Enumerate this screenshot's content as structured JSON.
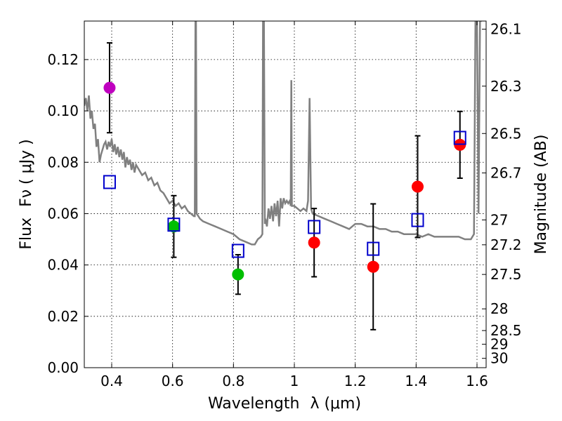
{
  "chart_data": {
    "type": "scatter",
    "xlabel": "Wavelength",
    "xlabel_math": "λ (μm)",
    "ylabel": "Flux",
    "ylabel_math": "Fν ( μJy )",
    "ylabel_right": "Magnitude (AB)",
    "xlim": [
      0.31,
      1.63
    ],
    "ylim": [
      0.0,
      0.135
    ],
    "grid": true,
    "x_ticks": [
      0.4,
      0.6,
      0.8,
      1.0,
      1.2,
      1.4,
      1.6
    ],
    "x_tick_labels": [
      "0.4",
      "0.6",
      "0.8",
      "1",
      "1.2",
      "1.4",
      "1.6"
    ],
    "y_ticks": [
      0.0,
      0.02,
      0.04,
      0.06,
      0.08,
      0.1,
      0.12
    ],
    "y_tick_labels": [
      "0.00",
      "0.02",
      "0.04",
      "0.06",
      "0.08",
      "0.10",
      "0.12"
    ],
    "right_ticks": [
      {
        "label": "26.1",
        "mag": 26.1
      },
      {
        "label": "26.3",
        "mag": 26.3
      },
      {
        "label": "26.5",
        "mag": 26.5
      },
      {
        "label": "26.7",
        "mag": 26.7
      },
      {
        "label": "27",
        "mag": 27.0
      },
      {
        "label": "27.2",
        "mag": 27.2
      },
      {
        "label": "27.5",
        "mag": 27.5
      },
      {
        "label": "28",
        "mag": 28.0
      },
      {
        "label": "28.5",
        "mag": 28.5
      },
      {
        "label": "29",
        "mag": 29.0
      },
      {
        "label": "30",
        "mag": 30.0
      }
    ],
    "observed": [
      {
        "x": 0.393,
        "y": 0.109,
        "err": 0.0175,
        "color": "#bf00bf"
      },
      {
        "x": 0.604,
        "y": 0.055,
        "err": 0.012,
        "color": "#00bf00"
      },
      {
        "x": 0.815,
        "y": 0.0363,
        "err": 0.0077,
        "color": "#00bf00"
      },
      {
        "x": 1.065,
        "y": 0.0487,
        "err": 0.0133,
        "color": "#ff0000"
      },
      {
        "x": 1.259,
        "y": 0.0393,
        "err": 0.0245,
        "color": "#ff0000"
      },
      {
        "x": 1.405,
        "y": 0.0705,
        "err": 0.0198,
        "color": "#ff0000"
      },
      {
        "x": 1.544,
        "y": 0.0868,
        "err": 0.013,
        "color": "#ff0000"
      }
    ],
    "model_bandpass": [
      {
        "x": 0.393,
        "y": 0.0723
      },
      {
        "x": 0.604,
        "y": 0.0557
      },
      {
        "x": 0.815,
        "y": 0.0455
      },
      {
        "x": 1.065,
        "y": 0.0548
      },
      {
        "x": 1.259,
        "y": 0.0463
      },
      {
        "x": 1.405,
        "y": 0.0575
      },
      {
        "x": 1.544,
        "y": 0.0895
      }
    ],
    "model_spectrum": [
      [
        0.31,
        0.102
      ],
      [
        0.315,
        0.105
      ],
      [
        0.32,
        0.1
      ],
      [
        0.325,
        0.106
      ],
      [
        0.33,
        0.097
      ],
      [
        0.335,
        0.1
      ],
      [
        0.34,
        0.093
      ],
      [
        0.345,
        0.095
      ],
      [
        0.35,
        0.086
      ],
      [
        0.355,
        0.089
      ],
      [
        0.36,
        0.08
      ],
      [
        0.365,
        0.083
      ],
      [
        0.37,
        0.085
      ],
      [
        0.375,
        0.087
      ],
      [
        0.38,
        0.088
      ],
      [
        0.385,
        0.085
      ],
      [
        0.39,
        0.088
      ],
      [
        0.395,
        0.086
      ],
      [
        0.4,
        0.089
      ],
      [
        0.405,
        0.084
      ],
      [
        0.41,
        0.087
      ],
      [
        0.415,
        0.083
      ],
      [
        0.42,
        0.086
      ],
      [
        0.425,
        0.082
      ],
      [
        0.43,
        0.085
      ],
      [
        0.435,
        0.081
      ],
      [
        0.44,
        0.084
      ],
      [
        0.445,
        0.078
      ],
      [
        0.45,
        0.082
      ],
      [
        0.455,
        0.079
      ],
      [
        0.46,
        0.081
      ],
      [
        0.465,
        0.077
      ],
      [
        0.47,
        0.08
      ],
      [
        0.475,
        0.076
      ],
      [
        0.48,
        0.079
      ],
      [
        0.49,
        0.077
      ],
      [
        0.5,
        0.075
      ],
      [
        0.51,
        0.076
      ],
      [
        0.52,
        0.073
      ],
      [
        0.53,
        0.074
      ],
      [
        0.54,
        0.071
      ],
      [
        0.55,
        0.072
      ],
      [
        0.56,
        0.069
      ],
      [
        0.57,
        0.068
      ],
      [
        0.58,
        0.066
      ],
      [
        0.59,
        0.064
      ],
      [
        0.6,
        0.065
      ],
      [
        0.61,
        0.063
      ],
      [
        0.62,
        0.064
      ],
      [
        0.63,
        0.062
      ],
      [
        0.64,
        0.063
      ],
      [
        0.65,
        0.061
      ],
      [
        0.66,
        0.06
      ],
      [
        0.67,
        0.059
      ],
      [
        0.673,
        0.059
      ],
      [
        0.675,
        0.135
      ],
      [
        0.677,
        0.135
      ],
      [
        0.679,
        0.06
      ],
      [
        0.69,
        0.058
      ],
      [
        0.7,
        0.057
      ],
      [
        0.72,
        0.056
      ],
      [
        0.74,
        0.055
      ],
      [
        0.76,
        0.054
      ],
      [
        0.78,
        0.053
      ],
      [
        0.8,
        0.052
      ],
      [
        0.82,
        0.05
      ],
      [
        0.84,
        0.049
      ],
      [
        0.86,
        0.048
      ],
      [
        0.87,
        0.048
      ],
      [
        0.88,
        0.05
      ],
      [
        0.89,
        0.051
      ],
      [
        0.895,
        0.052
      ],
      [
        0.897,
        0.135
      ],
      [
        0.9,
        0.135
      ],
      [
        0.903,
        0.056
      ],
      [
        0.905,
        0.058
      ],
      [
        0.91,
        0.055
      ],
      [
        0.915,
        0.062
      ],
      [
        0.92,
        0.058
      ],
      [
        0.925,
        0.063
      ],
      [
        0.93,
        0.057
      ],
      [
        0.935,
        0.064
      ],
      [
        0.94,
        0.059
      ],
      [
        0.945,
        0.065
      ],
      [
        0.95,
        0.055
      ],
      [
        0.955,
        0.066
      ],
      [
        0.96,
        0.062
      ],
      [
        0.965,
        0.066
      ],
      [
        0.97,
        0.064
      ],
      [
        0.975,
        0.065
      ],
      [
        0.98,
        0.064
      ],
      [
        0.985,
        0.065
      ],
      [
        0.988,
        0.063
      ],
      [
        0.99,
        0.112
      ],
      [
        0.992,
        0.063
      ],
      [
        1.0,
        0.063
      ],
      [
        1.01,
        0.062
      ],
      [
        1.02,
        0.061
      ],
      [
        1.03,
        0.062
      ],
      [
        1.04,
        0.061
      ],
      [
        1.045,
        0.065
      ],
      [
        1.05,
        0.105
      ],
      [
        1.055,
        0.062
      ],
      [
        1.06,
        0.06
      ],
      [
        1.08,
        0.059
      ],
      [
        1.1,
        0.058
      ],
      [
        1.12,
        0.057
      ],
      [
        1.14,
        0.056
      ],
      [
        1.16,
        0.055
      ],
      [
        1.18,
        0.054
      ],
      [
        1.2,
        0.056
      ],
      [
        1.22,
        0.056
      ],
      [
        1.24,
        0.055
      ],
      [
        1.26,
        0.055
      ],
      [
        1.28,
        0.054
      ],
      [
        1.3,
        0.054
      ],
      [
        1.32,
        0.053
      ],
      [
        1.34,
        0.053
      ],
      [
        1.36,
        0.052
      ],
      [
        1.38,
        0.052
      ],
      [
        1.4,
        0.052
      ],
      [
        1.42,
        0.051
      ],
      [
        1.44,
        0.052
      ],
      [
        1.46,
        0.051
      ],
      [
        1.48,
        0.051
      ],
      [
        1.5,
        0.051
      ],
      [
        1.52,
        0.051
      ],
      [
        1.54,
        0.051
      ],
      [
        1.56,
        0.05
      ],
      [
        1.58,
        0.05
      ],
      [
        1.59,
        0.052
      ],
      [
        1.595,
        0.135
      ],
      [
        1.6,
        0.135
      ],
      [
        1.605,
        0.06
      ],
      [
        1.61,
        0.135
      ],
      [
        1.615,
        0.135
      ]
    ],
    "colors": {
      "model_spectrum": "#808080",
      "model_bandpass": "#0000cc",
      "errorbar": "#000000"
    }
  }
}
